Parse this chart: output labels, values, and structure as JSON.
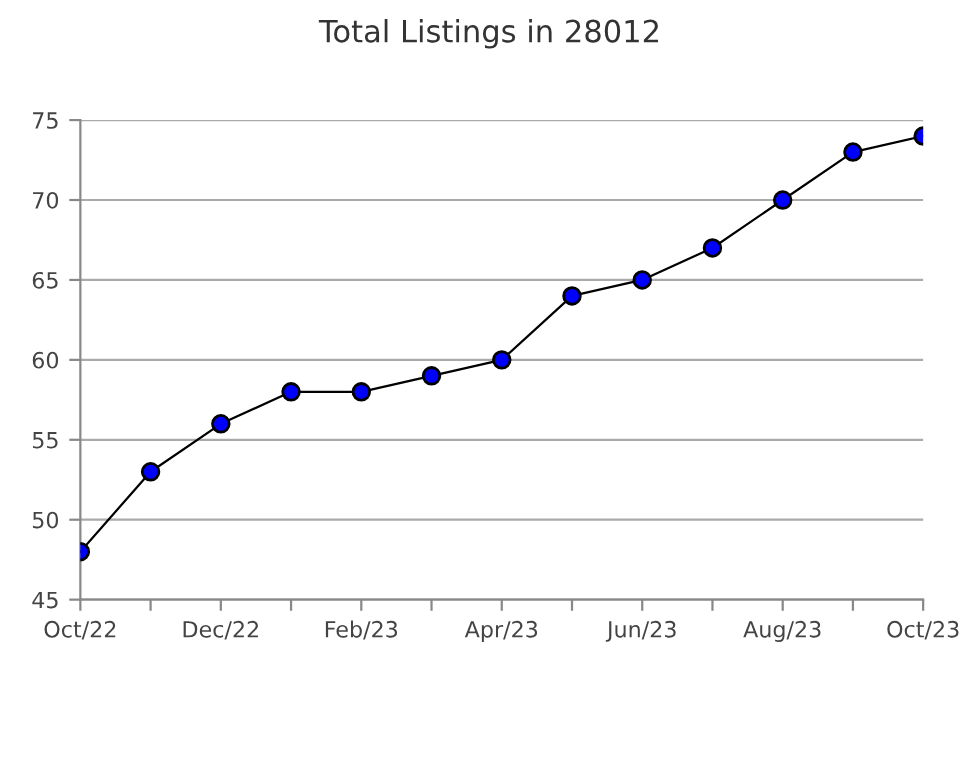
{
  "chart_data": {
    "type": "line",
    "title": "Total Listings in 28012",
    "categories": [
      "Oct/22",
      null,
      "Dec/22",
      null,
      "Feb/23",
      null,
      "Apr/23",
      null,
      "Jun/23",
      null,
      "Aug/23",
      null,
      "Oct/23"
    ],
    "series": [
      {
        "color": "#0000ff",
        "values": [
          48,
          53,
          56,
          58,
          58,
          59,
          60,
          64,
          65,
          67,
          70,
          73,
          74
        ]
      }
    ],
    "ylim": [
      45,
      75
    ],
    "yticks": [
      45,
      50,
      55,
      60,
      65,
      70,
      75
    ],
    "grid": "y",
    "marker": "circle",
    "line_style": "solid"
  }
}
